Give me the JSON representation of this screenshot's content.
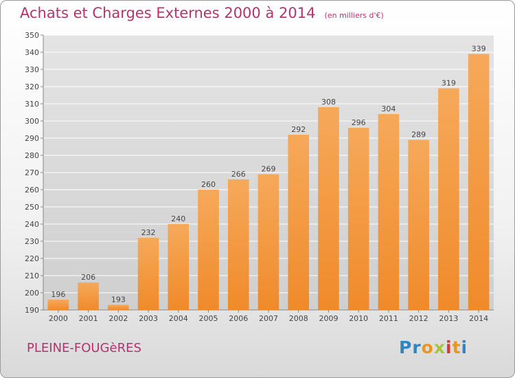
{
  "header": {
    "title": "Achats et Charges Externes 2000 à 2014",
    "unit_note": "(en milliers d'€)"
  },
  "footer": {
    "commune": "PLEINE-FOUGèRES"
  },
  "logo": {
    "letters": [
      {
        "char": "P",
        "color": "#2d86c4"
      },
      {
        "char": "r",
        "color": "#2d86c4"
      },
      {
        "char": "o",
        "color": "#e9961a"
      },
      {
        "char": "x",
        "color": "#a8c53a"
      },
      {
        "char": "i",
        "color": "#d9362f"
      },
      {
        "char": "t",
        "color": "#e9961a"
      },
      {
        "char": "i",
        "color": "#2d86c4"
      }
    ]
  },
  "chart_data": {
    "type": "bar",
    "title": "Achats et Charges Externes 2000 à 2014",
    "subtitle": "(en milliers d'€)",
    "categories": [
      "2000",
      "2001",
      "2002",
      "2003",
      "2004",
      "2005",
      "2006",
      "2007",
      "2008",
      "2009",
      "2010",
      "2011",
      "2012",
      "2013",
      "2014"
    ],
    "values": [
      196,
      206,
      193,
      232,
      240,
      260,
      266,
      269,
      292,
      308,
      296,
      304,
      289,
      319,
      339
    ],
    "ylim": [
      190,
      350
    ],
    "yticks": [
      190,
      200,
      210,
      220,
      230,
      240,
      250,
      260,
      270,
      280,
      290,
      300,
      310,
      320,
      330,
      340,
      350
    ],
    "grid": true,
    "bar_color": "#f08a2a",
    "bar_color_top": "#f6a95a",
    "label_color": "#444444"
  }
}
